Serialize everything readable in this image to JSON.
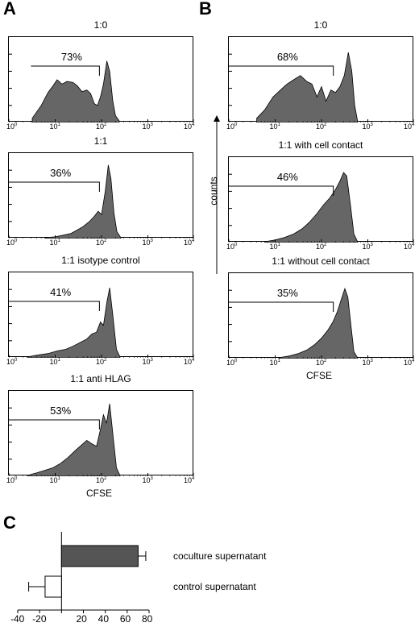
{
  "panels": {
    "A": {
      "letter": "A"
    },
    "B": {
      "letter": "B"
    },
    "C": {
      "letter": "C"
    }
  },
  "counts_label": "counts",
  "chart_data": [
    {
      "type": "area",
      "panel": "A",
      "title": "1:0",
      "gate_percent": "73%",
      "x_scale": "log",
      "xlim": [
        1,
        10000
      ],
      "x_tick_labels": [
        "10",
        "10",
        "10",
        "10",
        "10"
      ],
      "x_tick_exponents": [
        "0",
        "1",
        "2",
        "3",
        "4"
      ],
      "xlabel": "",
      "gate_range": [
        3,
        90
      ],
      "series": [
        {
          "x": [
            3.2,
            5,
            7,
            9,
            11,
            14,
            18,
            24,
            30,
            38,
            48,
            58,
            70,
            82,
            95,
            110,
            130,
            150,
            175,
            200,
            240
          ],
          "y": [
            0.05,
            0.2,
            0.35,
            0.43,
            0.5,
            0.45,
            0.48,
            0.47,
            0.43,
            0.36,
            0.38,
            0.34,
            0.22,
            0.2,
            0.3,
            0.45,
            0.72,
            0.6,
            0.25,
            0.08,
            0.02
          ]
        }
      ]
    },
    {
      "type": "area",
      "panel": "A",
      "title": "1:1",
      "gate_percent": "36%",
      "x_scale": "log",
      "xlim": [
        1,
        10000
      ],
      "x_tick_labels": [
        "10",
        "10",
        "10",
        "10",
        "10"
      ],
      "x_tick_exponents": [
        "0",
        "1",
        "2",
        "3",
        "4"
      ],
      "xlabel": "",
      "gate_range": [
        1,
        90
      ],
      "series": [
        {
          "x": [
            6,
            10,
            15,
            22,
            30,
            40,
            55,
            70,
            85,
            100,
            120,
            140,
            160,
            185,
            215,
            260
          ],
          "y": [
            0.01,
            0.02,
            0.04,
            0.06,
            0.1,
            0.14,
            0.2,
            0.26,
            0.32,
            0.28,
            0.55,
            0.86,
            0.7,
            0.3,
            0.08,
            0.01
          ]
        }
      ]
    },
    {
      "type": "area",
      "panel": "A",
      "title": "1:1 isotype control",
      "gate_percent": "41%",
      "x_scale": "log",
      "xlim": [
        1,
        10000
      ],
      "x_tick_labels": [
        "10",
        "10",
        "10",
        "10",
        "10"
      ],
      "x_tick_exponents": [
        "0",
        "1",
        "2",
        "3",
        "4"
      ],
      "xlabel": "",
      "gate_range": [
        1,
        90
      ],
      "series": [
        {
          "x": [
            2.5,
            4,
            7,
            11,
            17,
            25,
            35,
            48,
            62,
            78,
            95,
            110,
            130,
            150,
            175,
            210,
            250
          ],
          "y": [
            0.01,
            0.03,
            0.05,
            0.08,
            0.1,
            0.14,
            0.18,
            0.22,
            0.28,
            0.3,
            0.42,
            0.38,
            0.65,
            0.82,
            0.5,
            0.1,
            0.01
          ]
        }
      ]
    },
    {
      "type": "area",
      "panel": "A",
      "title": "1:1 anti HLAG",
      "gate_percent": "53%",
      "x_scale": "log",
      "xlim": [
        1,
        10000
      ],
      "x_tick_labels": [
        "10",
        "10",
        "10",
        "10",
        "10"
      ],
      "x_tick_exponents": [
        "0",
        "1",
        "2",
        "3",
        "4"
      ],
      "xlabel": "CFSE",
      "gate_range": [
        1,
        90
      ],
      "series": [
        {
          "x": [
            2.5,
            4,
            6,
            9,
            13,
            19,
            27,
            36,
            48,
            62,
            78,
            95,
            110,
            128,
            150,
            175,
            210,
            250
          ],
          "y": [
            0.01,
            0.04,
            0.07,
            0.1,
            0.15,
            0.22,
            0.3,
            0.36,
            0.42,
            0.38,
            0.35,
            0.55,
            0.72,
            0.62,
            0.85,
            0.5,
            0.1,
            0.01
          ]
        }
      ]
    },
    {
      "type": "area",
      "panel": "B",
      "title": "1:0",
      "gate_percent": "68%",
      "x_scale": "log",
      "xlim": [
        1,
        10000
      ],
      "x_tick_labels": [
        "10",
        "10",
        "10",
        "10",
        "10"
      ],
      "x_tick_exponents": [
        "0",
        "1",
        "2",
        "3",
        "4"
      ],
      "xlabel": "",
      "gate_range": [
        1,
        180
      ],
      "series": [
        {
          "x": [
            4,
            6,
            9,
            13,
            18,
            25,
            35,
            48,
            62,
            80,
            100,
            125,
            160,
            200,
            250,
            310,
            380,
            450,
            520,
            600
          ],
          "y": [
            0.05,
            0.15,
            0.3,
            0.38,
            0.45,
            0.5,
            0.55,
            0.48,
            0.45,
            0.3,
            0.42,
            0.25,
            0.38,
            0.35,
            0.42,
            0.55,
            0.82,
            0.6,
            0.2,
            0.02
          ]
        }
      ]
    },
    {
      "type": "area",
      "panel": "B",
      "title": "1:1 with cell contact",
      "gate_percent": "46%",
      "x_scale": "log",
      "xlim": [
        1,
        10000
      ],
      "x_tick_labels": [
        "10",
        "10",
        "10",
        "10",
        "10"
      ],
      "x_tick_exponents": [
        "0",
        "1",
        "2",
        "3",
        "4"
      ],
      "xlabel": "",
      "gate_range": [
        1,
        180
      ],
      "series": [
        {
          "x": [
            6,
            10,
            16,
            25,
            38,
            55,
            80,
            110,
            150,
            200,
            250,
            300,
            350,
            420,
            500,
            600
          ],
          "y": [
            0.01,
            0.03,
            0.06,
            0.1,
            0.16,
            0.24,
            0.34,
            0.44,
            0.52,
            0.62,
            0.72,
            0.82,
            0.78,
            0.45,
            0.1,
            0.01
          ]
        }
      ]
    },
    {
      "type": "area",
      "panel": "B",
      "title": "1:1 without cell contact",
      "gate_percent": "35%",
      "x_scale": "log",
      "xlim": [
        1,
        10000
      ],
      "x_tick_labels": [
        "10",
        "10",
        "10",
        "10",
        "10"
      ],
      "x_tick_exponents": [
        "0",
        "1",
        "2",
        "3",
        "4"
      ],
      "xlabel": "CFSE",
      "gate_range": [
        1,
        180
      ],
      "series": [
        {
          "x": [
            12,
            20,
            32,
            48,
            70,
            100,
            140,
            180,
            220,
            270,
            320,
            370,
            430,
            500,
            600
          ],
          "y": [
            0.01,
            0.03,
            0.06,
            0.1,
            0.16,
            0.24,
            0.34,
            0.44,
            0.55,
            0.7,
            0.82,
            0.72,
            0.4,
            0.08,
            0.01
          ]
        }
      ]
    },
    {
      "type": "bar",
      "orientation": "horizontal",
      "panel": "C",
      "categories": [
        "coculture supernatant",
        "control supernatant"
      ],
      "values": [
        70,
        -15
      ],
      "errors": [
        7,
        15
      ],
      "xlim": [
        -40,
        80
      ],
      "x_ticks": [
        -40,
        -20,
        0,
        20,
        40,
        60,
        80
      ],
      "x_tick_labels": [
        "-40",
        "-20",
        "",
        "20",
        "40",
        "60",
        "80"
      ],
      "colors": {
        "coculture supernatant": "#555555",
        "control supernatant": "#ffffff"
      }
    }
  ]
}
